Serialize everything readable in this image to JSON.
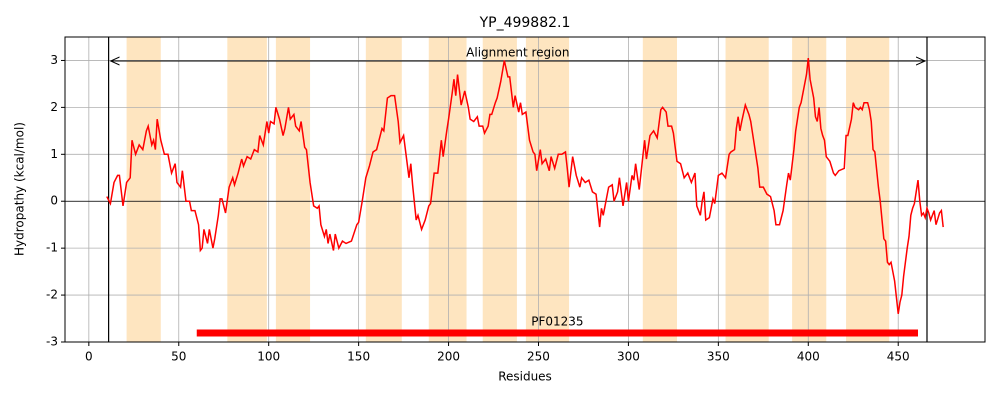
{
  "chart_data": {
    "type": "line",
    "title": "YP_499882.1",
    "xlabel": "Residues",
    "ylabel": "Hydropathy (kcal/mol)",
    "color": "#ff0000",
    "region_color": "#fee5c0",
    "grid": true,
    "xlim": [
      -13.25,
      498.25
    ],
    "ylim": [
      -3,
      3.5
    ],
    "xticks": [
      0,
      50,
      100,
      150,
      200,
      250,
      300,
      350,
      400,
      450
    ],
    "yticks": [
      -3,
      -2,
      -1,
      0,
      1,
      2,
      3
    ],
    "highlight_regions": [
      [
        21,
        40
      ],
      [
        77,
        99
      ],
      [
        104,
        123
      ],
      [
        154,
        174
      ],
      [
        189,
        210
      ],
      [
        219,
        238
      ],
      [
        243,
        267
      ],
      [
        308,
        327
      ],
      [
        354,
        378
      ],
      [
        391,
        410
      ],
      [
        421,
        445
      ]
    ],
    "alignment_region": {
      "label": "Alignment region",
      "start": 11,
      "end": 466
    },
    "domains": [
      {
        "label": "PF01235",
        "start": 60,
        "end": 461
      }
    ],
    "x": [
      10,
      12,
      14,
      16,
      17,
      19,
      21,
      23,
      24,
      26,
      28,
      30,
      32,
      33,
      35,
      36,
      37,
      38,
      40,
      42,
      44,
      46,
      48,
      49,
      51,
      52,
      54,
      56,
      57,
      59,
      61,
      62,
      63,
      64,
      66,
      67,
      69,
      70,
      72,
      73,
      74,
      76,
      78,
      80,
      81,
      83,
      85,
      86,
      88,
      90,
      92,
      94,
      95,
      97,
      99,
      100,
      101,
      103,
      104,
      106,
      108,
      109,
      111,
      112,
      114,
      115,
      117,
      118,
      120,
      121,
      123,
      125,
      127,
      128,
      129,
      131,
      132,
      133,
      134,
      136,
      137,
      139,
      141,
      143,
      146,
      149,
      150,
      152,
      154,
      156,
      158,
      160,
      162,
      163,
      164,
      166,
      168,
      170,
      172,
      173,
      175,
      176,
      178,
      179,
      180,
      182,
      183,
      185,
      187,
      189,
      190,
      192,
      194,
      196,
      197,
      199,
      200,
      202,
      203,
      204,
      205,
      207,
      209,
      211,
      212,
      214,
      216,
      217,
      219,
      220,
      222,
      223,
      224,
      226,
      227,
      229,
      231,
      233,
      234,
      236,
      237,
      239,
      240,
      241,
      243,
      245,
      247,
      248,
      249,
      251,
      252,
      254,
      256,
      257,
      259,
      261,
      263,
      265,
      266,
      267,
      269,
      271,
      273,
      274,
      276,
      278,
      280,
      282,
      284,
      285,
      286,
      288,
      289,
      291,
      292,
      294,
      295,
      297,
      299,
      300,
      302,
      303,
      304,
      306,
      307,
      309,
      310,
      312,
      314,
      316,
      318,
      319,
      321,
      322,
      324,
      325,
      327,
      329,
      331,
      333,
      335,
      337,
      338,
      340,
      341,
      342,
      343,
      345,
      347,
      348,
      350,
      352,
      354,
      356,
      357,
      359,
      360,
      361,
      362,
      363,
      365,
      367,
      368,
      370,
      372,
      373,
      375,
      377,
      379,
      381,
      382,
      384,
      386,
      388,
      389,
      390,
      392,
      393,
      395,
      396,
      397,
      399,
      400,
      401,
      403,
      404,
      405,
      406,
      407,
      408,
      409,
      410,
      412,
      414,
      415,
      417,
      420,
      421,
      422,
      424,
      425,
      426,
      428,
      429,
      430,
      431,
      433,
      434,
      435,
      436,
      437,
      439,
      440,
      441,
      442,
      443,
      444,
      445,
      446,
      448,
      449,
      450,
      451,
      452,
      453,
      455,
      456,
      457,
      458,
      459,
      460,
      461,
      462,
      463,
      464,
      465,
      466,
      467,
      468,
      470,
      471,
      473,
      474,
      475
    ],
    "values": [
      0.1,
      -0.05,
      0.4,
      0.55,
      0.55,
      -0.1,
      0.4,
      0.5,
      1.3,
      1.0,
      1.2,
      1.1,
      1.5,
      1.6,
      1.2,
      1.3,
      1.1,
      1.75,
      1.3,
      1.0,
      1.0,
      0.6,
      0.8,
      0.4,
      0.3,
      0.65,
      0.0,
      0.0,
      -0.2,
      -0.2,
      -0.5,
      -1.05,
      -1.0,
      -0.6,
      -0.9,
      -0.6,
      -1.0,
      -0.8,
      -0.3,
      0.05,
      0.05,
      -0.25,
      0.3,
      0.5,
      0.35,
      0.6,
      0.9,
      0.75,
      0.95,
      0.9,
      1.1,
      1.05,
      1.4,
      1.2,
      1.7,
      1.45,
      1.7,
      1.65,
      2.0,
      1.75,
      1.4,
      1.55,
      2.0,
      1.75,
      1.85,
      1.6,
      1.5,
      1.7,
      1.15,
      1.1,
      0.4,
      -0.1,
      -0.15,
      -0.1,
      -0.5,
      -0.75,
      -0.6,
      -0.9,
      -0.7,
      -1.05,
      -0.7,
      -1.0,
      -0.85,
      -0.9,
      -0.85,
      -0.5,
      -0.45,
      0.0,
      0.5,
      0.75,
      1.05,
      1.1,
      1.4,
      1.55,
      1.5,
      2.2,
      2.25,
      2.25,
      1.7,
      1.25,
      1.4,
      1.1,
      0.5,
      0.8,
      0.35,
      -0.4,
      -0.3,
      -0.6,
      -0.4,
      -0.1,
      -0.05,
      0.6,
      0.6,
      1.3,
      0.95,
      1.5,
      1.75,
      2.3,
      2.6,
      2.25,
      2.7,
      2.05,
      2.35,
      2.0,
      1.75,
      1.7,
      1.8,
      1.6,
      1.6,
      1.45,
      1.6,
      1.85,
      1.85,
      2.1,
      2.2,
      2.55,
      3.0,
      2.65,
      2.65,
      2.0,
      2.25,
      1.9,
      2.1,
      1.85,
      1.9,
      1.3,
      1.05,
      1.0,
      0.65,
      1.1,
      0.8,
      0.9,
      0.65,
      0.95,
      0.7,
      1.0,
      1.0,
      1.05,
      0.7,
      0.3,
      0.95,
      0.55,
      0.3,
      0.5,
      0.4,
      0.45,
      0.2,
      0.15,
      -0.55,
      -0.15,
      -0.3,
      0.1,
      0.3,
      0.35,
      0.0,
      0.2,
      0.5,
      -0.1,
      0.4,
      0.0,
      0.55,
      0.45,
      0.8,
      0.25,
      0.6,
      1.3,
      0.9,
      1.4,
      1.5,
      1.35,
      1.95,
      2.0,
      1.9,
      1.6,
      1.6,
      1.45,
      0.85,
      0.8,
      0.5,
      0.6,
      0.4,
      0.6,
      -0.1,
      -0.3,
      0.0,
      0.2,
      -0.4,
      -0.35,
      0.05,
      -0.05,
      0.55,
      0.6,
      0.5,
      1.0,
      1.05,
      1.1,
      1.55,
      1.8,
      1.5,
      1.7,
      2.05,
      1.85,
      1.7,
      1.2,
      0.7,
      0.3,
      0.3,
      0.15,
      0.1,
      -0.2,
      -0.5,
      -0.5,
      -0.2,
      0.35,
      0.6,
      0.45,
      1.1,
      1.5,
      2.0,
      2.1,
      2.3,
      2.7,
      3.05,
      2.6,
      2.2,
      1.8,
      1.7,
      2.0,
      1.55,
      1.4,
      1.3,
      0.95,
      0.85,
      0.6,
      0.55,
      0.65,
      0.7,
      1.4,
      1.4,
      1.75,
      2.1,
      2.0,
      1.95,
      2.0,
      1.95,
      2.1,
      2.1,
      1.95,
      1.7,
      1.1,
      1.05,
      0.3,
      0.0,
      -0.4,
      -0.8,
      -0.85,
      -1.3,
      -1.35,
      -1.3,
      -1.7,
      -2.05,
      -2.4,
      -2.15,
      -2.0,
      -1.6,
      -1.0,
      -0.75,
      -0.3,
      -0.15,
      -0.05,
      0.2,
      0.45,
      0.0,
      -0.3,
      -0.25,
      -0.35,
      -0.15,
      -0.25,
      -0.4,
      -0.2,
      -0.5,
      -0.25,
      -0.2,
      -0.55
    ]
  }
}
